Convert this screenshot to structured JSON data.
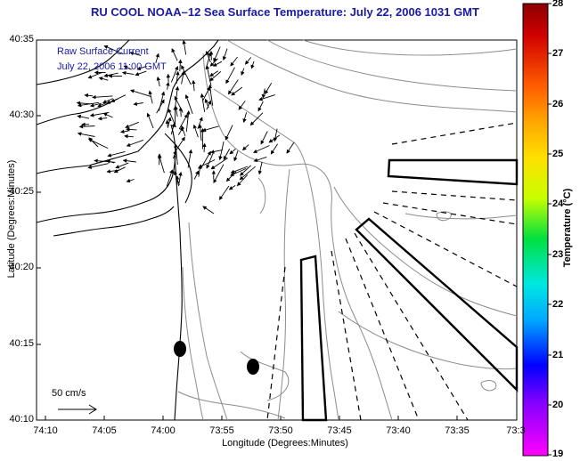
{
  "title": "RU COOL  NOAA–12  Sea Surface Temperature:  July 22, 2006 1031 GMT",
  "legend": {
    "line1": "Raw Surface Current",
    "line2": "July 22, 2006 11:00 GMT"
  },
  "scale": {
    "label": "50 cm/s"
  },
  "axes": {
    "ylabel": "Latitude (Degrees:Minutes)",
    "xlabel": "Longitude (Degrees:Minutes)",
    "yticks": [
      "40:35",
      "40:30",
      "40:25",
      "40:20",
      "40:15",
      "40:10"
    ],
    "xticks": [
      "74:10",
      "74:05",
      "74:00",
      "73:55",
      "73:50",
      "73:45",
      "73:40",
      "73:35",
      "73:3"
    ]
  },
  "colorbar": {
    "label": "Temperature (°C)",
    "ticks": [
      "28",
      "27",
      "26",
      "25",
      "24",
      "23",
      "22",
      "21",
      "20",
      "19"
    ],
    "min": 19,
    "max": 28
  },
  "colors": {
    "title": "#1a1aa6",
    "legend": "#1a1aa6",
    "coast": "#000000",
    "contour": "#888888"
  },
  "icons": [
    "current-vector-arrow",
    "scale-arrow",
    "station-marker"
  ]
}
